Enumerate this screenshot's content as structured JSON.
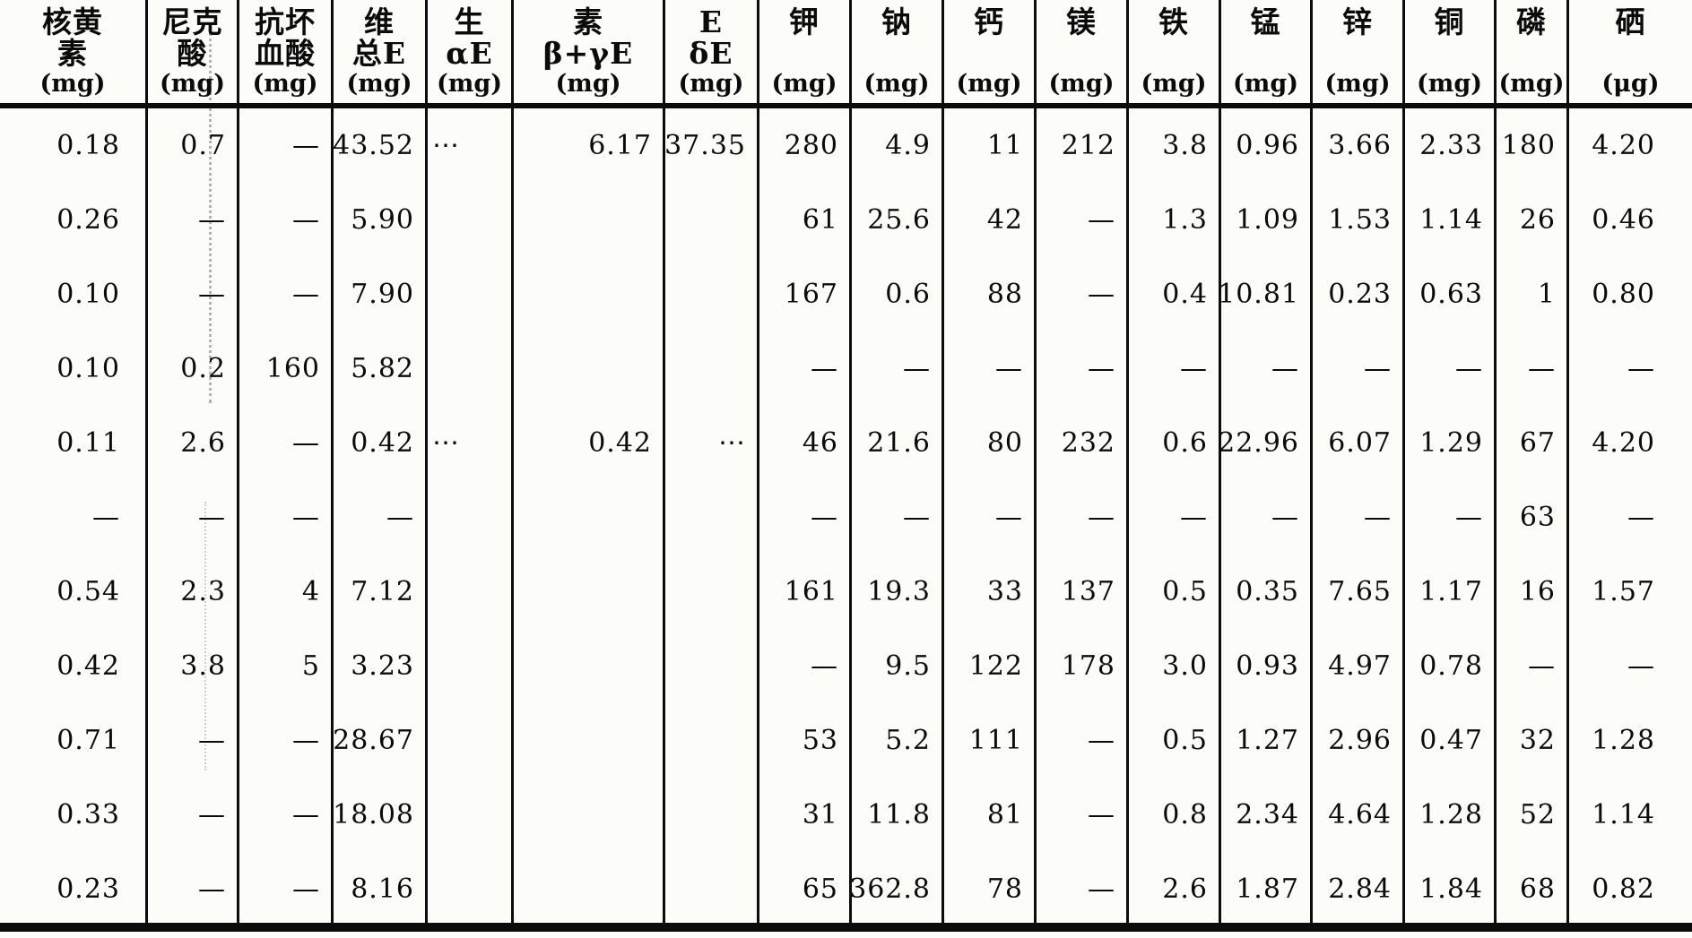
{
  "table": {
    "columns": [
      {
        "name": "riboflavin",
        "line1": "核黄",
        "line2": "素",
        "unit": "(mg)"
      },
      {
        "name": "niacin",
        "line1": "尼克",
        "line2": "酸",
        "unit": "(mg)"
      },
      {
        "name": "ascorbic-acid",
        "line1": "抗坏",
        "line2": "血酸",
        "unit": "(mg)"
      },
      {
        "name": "vitamin-e-total",
        "line1": "维",
        "line2": "总E",
        "unit": "(mg)"
      },
      {
        "name": "vitamin-e-alpha",
        "line1": "生",
        "line2": "αE",
        "unit": "(mg)"
      },
      {
        "name": "vitamin-e-beta-gamma",
        "line1": "素",
        "line2": "β+γE",
        "unit": "(mg)"
      },
      {
        "name": "vitamin-e-delta",
        "line1": "E",
        "line2": "δE",
        "unit": "(mg)"
      },
      {
        "name": "potassium",
        "line1": "钾",
        "line2": "",
        "unit": "(mg)"
      },
      {
        "name": "sodium",
        "line1": "钠",
        "line2": "",
        "unit": "(mg)"
      },
      {
        "name": "calcium",
        "line1": "钙",
        "line2": "",
        "unit": "(mg)"
      },
      {
        "name": "magnesium",
        "line1": "镁",
        "line2": "",
        "unit": "(mg)"
      },
      {
        "name": "iron",
        "line1": "铁",
        "line2": "",
        "unit": "(mg)"
      },
      {
        "name": "manganese",
        "line1": "锰",
        "line2": "",
        "unit": "(mg)"
      },
      {
        "name": "zinc",
        "line1": "锌",
        "line2": "",
        "unit": "(mg)"
      },
      {
        "name": "copper",
        "line1": "铜",
        "line2": "",
        "unit": "(mg)"
      },
      {
        "name": "phosphorus",
        "line1": "磷",
        "line2": "",
        "unit": "(mg)"
      },
      {
        "name": "selenium",
        "line1": "硒",
        "line2": "",
        "unit": "(μg)"
      }
    ],
    "rows": [
      [
        "0.18",
        "0.7",
        "—",
        "43.52",
        "⋯",
        "6.17",
        "37.35",
        "280",
        "4.9",
        "11",
        "212",
        "3.8",
        "0.96",
        "3.66",
        "2.33",
        "180",
        "4.20"
      ],
      [
        "0.26",
        "—",
        "—",
        "5.90",
        "",
        "",
        "",
        "61",
        "25.6",
        "42",
        "—",
        "1.3",
        "1.09",
        "1.53",
        "1.14",
        "26",
        "0.46"
      ],
      [
        "0.10",
        "—",
        "—",
        "7.90",
        "",
        "",
        "",
        "167",
        "0.6",
        "88",
        "—",
        "0.4",
        "10.81",
        "0.23",
        "0.63",
        "1",
        "0.80"
      ],
      [
        "0.10",
        "0.2",
        "160",
        "5.82",
        "",
        "",
        "",
        "—",
        "—",
        "—",
        "—",
        "—",
        "—",
        "—",
        "—",
        "—",
        "—"
      ],
      [
        "0.11",
        "2.6",
        "—",
        "0.42",
        "⋯",
        "0.42",
        "⋯",
        "46",
        "21.6",
        "80",
        "232",
        "0.6",
        "22.96",
        "6.07",
        "1.29",
        "67",
        "4.20"
      ],
      [
        "—",
        "—",
        "—",
        "—",
        "",
        "",
        "",
        "—",
        "—",
        "—",
        "—",
        "—",
        "—",
        "—",
        "—",
        "63",
        "—"
      ],
      [
        "0.54",
        "2.3",
        "4",
        "7.12",
        "",
        "",
        "",
        "161",
        "19.3",
        "33",
        "137",
        "0.5",
        "0.35",
        "7.65",
        "1.17",
        "16",
        "1.57"
      ],
      [
        "0.42",
        "3.8",
        "5",
        "3.23",
        "",
        "",
        "",
        "—",
        "9.5",
        "122",
        "178",
        "3.0",
        "0.93",
        "4.97",
        "0.78",
        "—",
        "—"
      ],
      [
        "0.71",
        "—",
        "—",
        "28.67",
        "",
        "",
        "",
        "53",
        "5.2",
        "111",
        "—",
        "0.5",
        "1.27",
        "2.96",
        "0.47",
        "32",
        "1.28"
      ],
      [
        "0.33",
        "—",
        "—",
        "18.08",
        "",
        "",
        "",
        "31",
        "11.8",
        "81",
        "—",
        "0.8",
        "2.34",
        "4.64",
        "1.28",
        "52",
        "1.14"
      ],
      [
        "0.23",
        "—",
        "—",
        "8.16",
        "",
        "",
        "",
        "65",
        "362.8",
        "78",
        "—",
        "2.6",
        "1.87",
        "2.84",
        "1.84",
        "68",
        "0.82"
      ]
    ],
    "ink_color": "#0c0c0c",
    "paper_color": "#fcfcf9"
  }
}
